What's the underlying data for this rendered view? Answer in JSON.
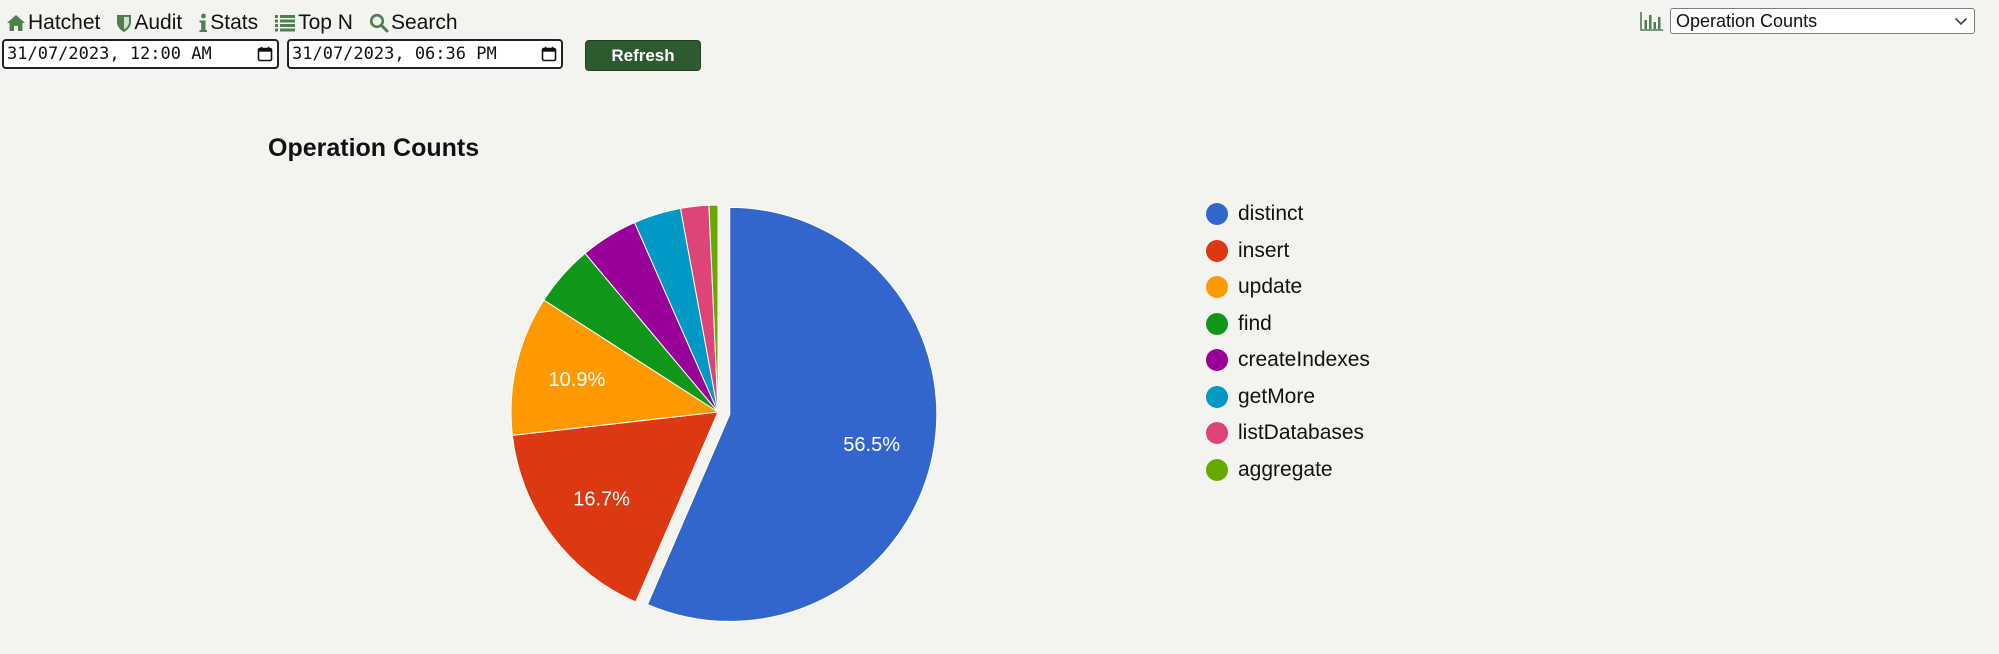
{
  "nav": {
    "items": [
      {
        "label": "Hatchet",
        "icon": "home-icon"
      },
      {
        "label": "Audit",
        "icon": "shield-icon"
      },
      {
        "label": "Stats",
        "icon": "info-icon"
      },
      {
        "label": "Top N",
        "icon": "list-icon"
      },
      {
        "label": "Search",
        "icon": "search-icon"
      }
    ]
  },
  "filters": {
    "start": "31/07/2023, 12:00 AM",
    "end": "31/07/2023, 06:36 PM",
    "refresh_label": "Refresh"
  },
  "chart_select": {
    "selected": "Operation Counts"
  },
  "colors": {
    "accent": "#2e5a2f",
    "nav_icon": "#4e7f4f"
  },
  "chart_data": {
    "type": "pie",
    "title": "Operation Counts",
    "legend_position": "right",
    "slices": [
      {
        "label": "distinct",
        "value": 56.5,
        "color": "#3366cc",
        "show_label": true,
        "exploded": true
      },
      {
        "label": "insert",
        "value": 16.7,
        "color": "#dc3912",
        "show_label": true,
        "exploded": false
      },
      {
        "label": "update",
        "value": 10.9,
        "color": "#ff9900",
        "show_label": true,
        "exploded": false
      },
      {
        "label": "find",
        "value": 4.8,
        "color": "#109618",
        "show_label": false,
        "exploded": false
      },
      {
        "label": "createIndexes",
        "value": 4.5,
        "color": "#990099",
        "show_label": false,
        "exploded": false
      },
      {
        "label": "getMore",
        "value": 3.7,
        "color": "#0099c6",
        "show_label": false,
        "exploded": false
      },
      {
        "label": "listDatabases",
        "value": 2.2,
        "color": "#dd4477",
        "show_label": false,
        "exploded": false
      },
      {
        "label": "aggregate",
        "value": 0.7,
        "color": "#66aa00",
        "show_label": false,
        "exploded": false
      }
    ]
  }
}
